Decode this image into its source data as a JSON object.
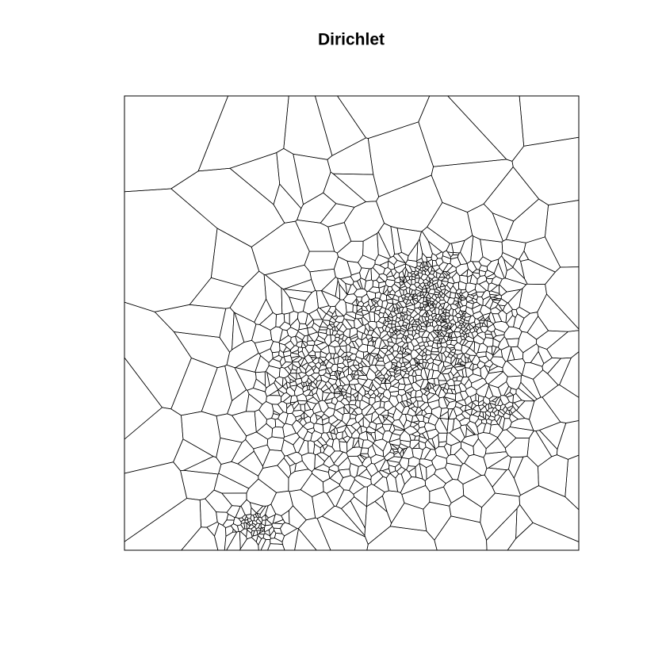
{
  "chart_data": {
    "type": "tessellation",
    "title": "Dirichlet"
  }
}
